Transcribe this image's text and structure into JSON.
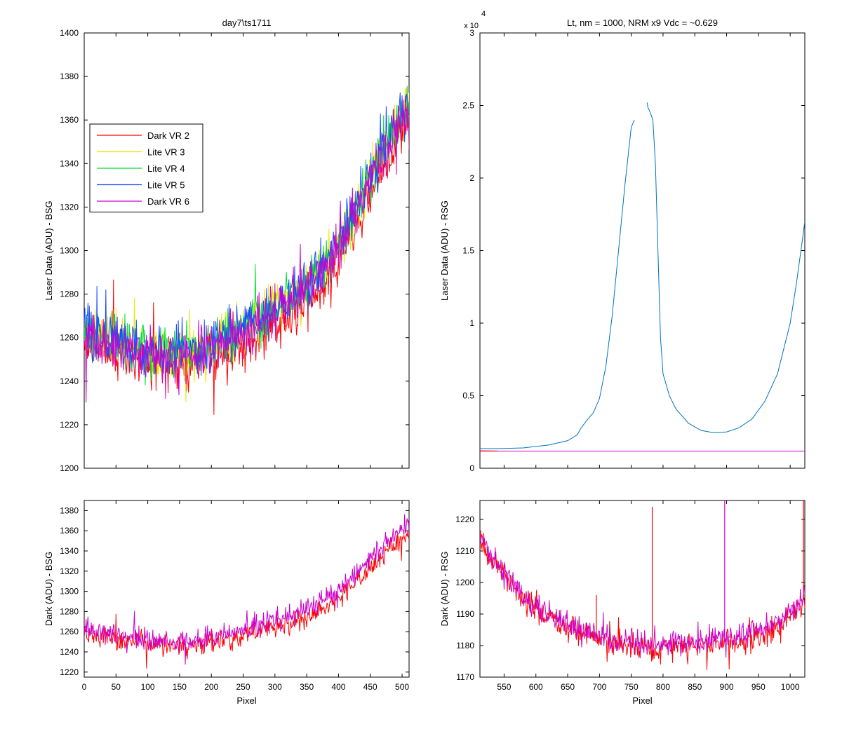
{
  "figure": {
    "background": "#ffffff"
  },
  "chart_data": [
    {
      "id": "top-left",
      "type": "line",
      "title": "day7\\ts1711",
      "xlabel": "",
      "ylabel": "Laser Data (ADU) - BSG",
      "xlim": [
        0,
        511
      ],
      "ylim": [
        1200,
        1400
      ],
      "x_ticks": [
        0,
        50,
        100,
        150,
        200,
        250,
        300,
        350,
        400,
        450,
        500
      ],
      "x_tick_labels_shown": false,
      "y_ticks": [
        1200,
        1220,
        1240,
        1260,
        1280,
        1300,
        1320,
        1340,
        1360,
        1380,
        1400
      ],
      "legend_position": "upper-left",
      "noise_amplitude": 10,
      "series": [
        {
          "name": "Dark VR 2",
          "color": "#ff0000",
          "x": [
            0,
            25,
            50,
            75,
            100,
            125,
            150,
            175,
            200,
            225,
            250,
            275,
            300,
            325,
            350,
            375,
            400,
            425,
            450,
            475,
            500,
            511
          ],
          "y": [
            1257,
            1256,
            1253,
            1251,
            1250,
            1249,
            1248,
            1249,
            1251,
            1254,
            1258,
            1262,
            1266,
            1270,
            1276,
            1284,
            1294,
            1310,
            1326,
            1342,
            1355,
            1360
          ]
        },
        {
          "name": "Lite VR 3",
          "color": "#e8e800",
          "x": [
            0,
            25,
            50,
            75,
            100,
            125,
            150,
            175,
            200,
            225,
            250,
            275,
            300,
            325,
            350,
            375,
            400,
            425,
            450,
            475,
            500,
            511
          ],
          "y": [
            1262,
            1260,
            1257,
            1255,
            1253,
            1252,
            1252,
            1253,
            1256,
            1260,
            1264,
            1268,
            1273,
            1278,
            1284,
            1292,
            1303,
            1318,
            1334,
            1350,
            1363,
            1368
          ]
        },
        {
          "name": "Lite VR 4",
          "color": "#00dd33",
          "x": [
            0,
            25,
            50,
            75,
            100,
            125,
            150,
            175,
            200,
            225,
            250,
            275,
            300,
            325,
            350,
            375,
            400,
            425,
            450,
            475,
            500,
            511
          ],
          "y": [
            1263,
            1261,
            1258,
            1256,
            1254,
            1253,
            1253,
            1254,
            1257,
            1261,
            1265,
            1269,
            1274,
            1279,
            1285,
            1293,
            1304,
            1319,
            1335,
            1350,
            1362,
            1366
          ]
        },
        {
          "name": "Lite VR 5",
          "color": "#1a4dff",
          "x": [
            0,
            25,
            50,
            75,
            100,
            125,
            150,
            175,
            200,
            225,
            250,
            275,
            300,
            325,
            350,
            375,
            400,
            425,
            450,
            475,
            500,
            511
          ],
          "y": [
            1263,
            1261,
            1258,
            1256,
            1254,
            1253,
            1253,
            1254,
            1257,
            1261,
            1265,
            1269,
            1274,
            1279,
            1285,
            1293,
            1304,
            1319,
            1335,
            1350,
            1362,
            1366
          ]
        },
        {
          "name": "Dark VR 6",
          "color": "#cc00cc",
          "x": [
            0,
            25,
            50,
            75,
            100,
            125,
            150,
            175,
            200,
            225,
            250,
            275,
            300,
            325,
            350,
            375,
            400,
            425,
            450,
            475,
            500,
            511
          ],
          "y": [
            1261,
            1259,
            1256,
            1254,
            1252,
            1251,
            1251,
            1252,
            1255,
            1259,
            1263,
            1267,
            1272,
            1277,
            1283,
            1291,
            1302,
            1317,
            1333,
            1348,
            1360,
            1364
          ]
        }
      ]
    },
    {
      "id": "top-right",
      "type": "line",
      "title": "Lt, nm = 1000, NRM x9 Vdc = ~0.629",
      "xlabel": "",
      "ylabel": "Laser Data (ADU) - RSG",
      "xlim": [
        512,
        1023
      ],
      "ylim": [
        0,
        30000
      ],
      "y_exponent_label": "x 10",
      "y_exponent_power": "4",
      "x_ticks": [
        550,
        600,
        650,
        700,
        750,
        800,
        850,
        900,
        950,
        1000
      ],
      "x_tick_labels_shown": false,
      "y_ticks": [
        0,
        5000,
        10000,
        15000,
        20000,
        25000,
        30000
      ],
      "y_tick_labels": [
        "0",
        "0.5",
        "1",
        "1.5",
        "2",
        "2.5",
        "3"
      ],
      "series": [
        {
          "color": "#0072bd",
          "x": [
            512,
            540,
            580,
            620,
            650,
            665,
            670,
            680,
            690,
            700,
            710,
            720,
            730,
            740,
            750,
            755
          ],
          "y": [
            1350,
            1350,
            1400,
            1600,
            1900,
            2300,
            2700,
            3300,
            3800,
            4800,
            7000,
            10500,
            15000,
            19500,
            23500,
            24000
          ]
        },
        {
          "color": "#0072bd",
          "x": [
            775,
            776,
            780,
            784,
            788,
            792,
            796,
            800,
            810,
            820,
            840,
            860,
            880,
            900,
            920,
            940,
            960,
            980,
            1000,
            1010,
            1020,
            1023
          ],
          "y": [
            25200,
            24900,
            24500,
            24000,
            21000,
            15000,
            9000,
            6500,
            5000,
            4100,
            3100,
            2600,
            2450,
            2500,
            2800,
            3400,
            4600,
            6500,
            10000,
            12800,
            16000,
            17000
          ]
        },
        {
          "color": "#cc00cc",
          "x": [
            512,
            1023
          ],
          "y": [
            1180,
            1180
          ]
        },
        {
          "color": "#ff0000",
          "x": [
            512,
            540
          ],
          "y": [
            1200,
            1190
          ]
        }
      ]
    },
    {
      "id": "bottom-left",
      "type": "line",
      "title": "",
      "xlabel": "Pixel",
      "ylabel": "Dark (ADU) - BSG",
      "xlim": [
        0,
        511
      ],
      "ylim": [
        1215,
        1390
      ],
      "x_ticks": [
        0,
        50,
        100,
        150,
        200,
        250,
        300,
        350,
        400,
        450,
        500
      ],
      "x_tick_labels_shown": true,
      "y_ticks": [
        1220,
        1240,
        1260,
        1280,
        1300,
        1320,
        1340,
        1360,
        1380
      ],
      "noise_amplitude": 9,
      "series": [
        {
          "color": "#ff0000",
          "x": [
            0,
            25,
            50,
            75,
            100,
            125,
            150,
            175,
            200,
            225,
            250,
            275,
            300,
            325,
            350,
            375,
            400,
            425,
            450,
            475,
            500,
            511
          ],
          "y": [
            1256,
            1255,
            1252,
            1250,
            1248,
            1247,
            1246,
            1247,
            1249,
            1252,
            1256,
            1260,
            1264,
            1268,
            1274,
            1282,
            1292,
            1307,
            1323,
            1339,
            1352,
            1357
          ]
        },
        {
          "color": "#cc00cc",
          "x": [
            0,
            25,
            50,
            75,
            100,
            125,
            150,
            175,
            200,
            225,
            250,
            275,
            300,
            325,
            350,
            375,
            400,
            425,
            450,
            475,
            500,
            511
          ],
          "y": [
            1261,
            1259,
            1256,
            1254,
            1252,
            1251,
            1251,
            1252,
            1255,
            1259,
            1263,
            1267,
            1272,
            1277,
            1283,
            1291,
            1302,
            1317,
            1333,
            1348,
            1360,
            1364
          ]
        }
      ]
    },
    {
      "id": "bottom-right",
      "type": "line",
      "title": "",
      "xlabel": "Pixel",
      "ylabel": "Dark (ADU) - RSG",
      "xlim": [
        512,
        1023
      ],
      "ylim": [
        1170,
        1226
      ],
      "x_ticks": [
        550,
        600,
        650,
        700,
        750,
        800,
        850,
        900,
        950,
        1000
      ],
      "x_tick_labels_shown": true,
      "y_ticks": [
        1170,
        1180,
        1190,
        1200,
        1210,
        1220
      ],
      "noise_amplitude": 3.5,
      "series": [
        {
          "color": "#ff0000",
          "x": [
            512,
            530,
            550,
            570,
            590,
            610,
            630,
            650,
            670,
            690,
            710,
            730,
            750,
            770,
            790,
            810,
            830,
            850,
            870,
            890,
            910,
            930,
            950,
            970,
            990,
            1010,
            1023
          ],
          "y": [
            1214,
            1207,
            1202,
            1197,
            1193,
            1190,
            1188,
            1186,
            1184,
            1183,
            1182,
            1181,
            1180,
            1180,
            1179,
            1179,
            1180,
            1180,
            1180,
            1181,
            1181,
            1182,
            1183,
            1184,
            1187,
            1191,
            1195
          ]
        },
        {
          "color": "#cc00cc",
          "x": [
            512,
            530,
            550,
            570,
            590,
            610,
            630,
            650,
            670,
            690,
            710,
            730,
            750,
            770,
            790,
            810,
            830,
            850,
            870,
            890,
            910,
            930,
            950,
            970,
            990,
            1010,
            1023
          ],
          "y": [
            1215,
            1208,
            1203,
            1198,
            1194,
            1191,
            1189,
            1187,
            1185,
            1184,
            1183,
            1182,
            1181,
            1181,
            1180,
            1181,
            1181,
            1181,
            1182,
            1182,
            1183,
            1184,
            1185,
            1186,
            1189,
            1193,
            1197
          ]
        }
      ],
      "spikes": [
        {
          "x": 783,
          "y": 1224,
          "color": "#ff0000"
        },
        {
          "x": 695,
          "y": 1196,
          "color": "#ff0000"
        },
        {
          "x": 897,
          "y": 1226,
          "color": "#cc00cc"
        },
        {
          "x": 1021,
          "y": 1226,
          "color": "#ff0000"
        }
      ]
    }
  ]
}
